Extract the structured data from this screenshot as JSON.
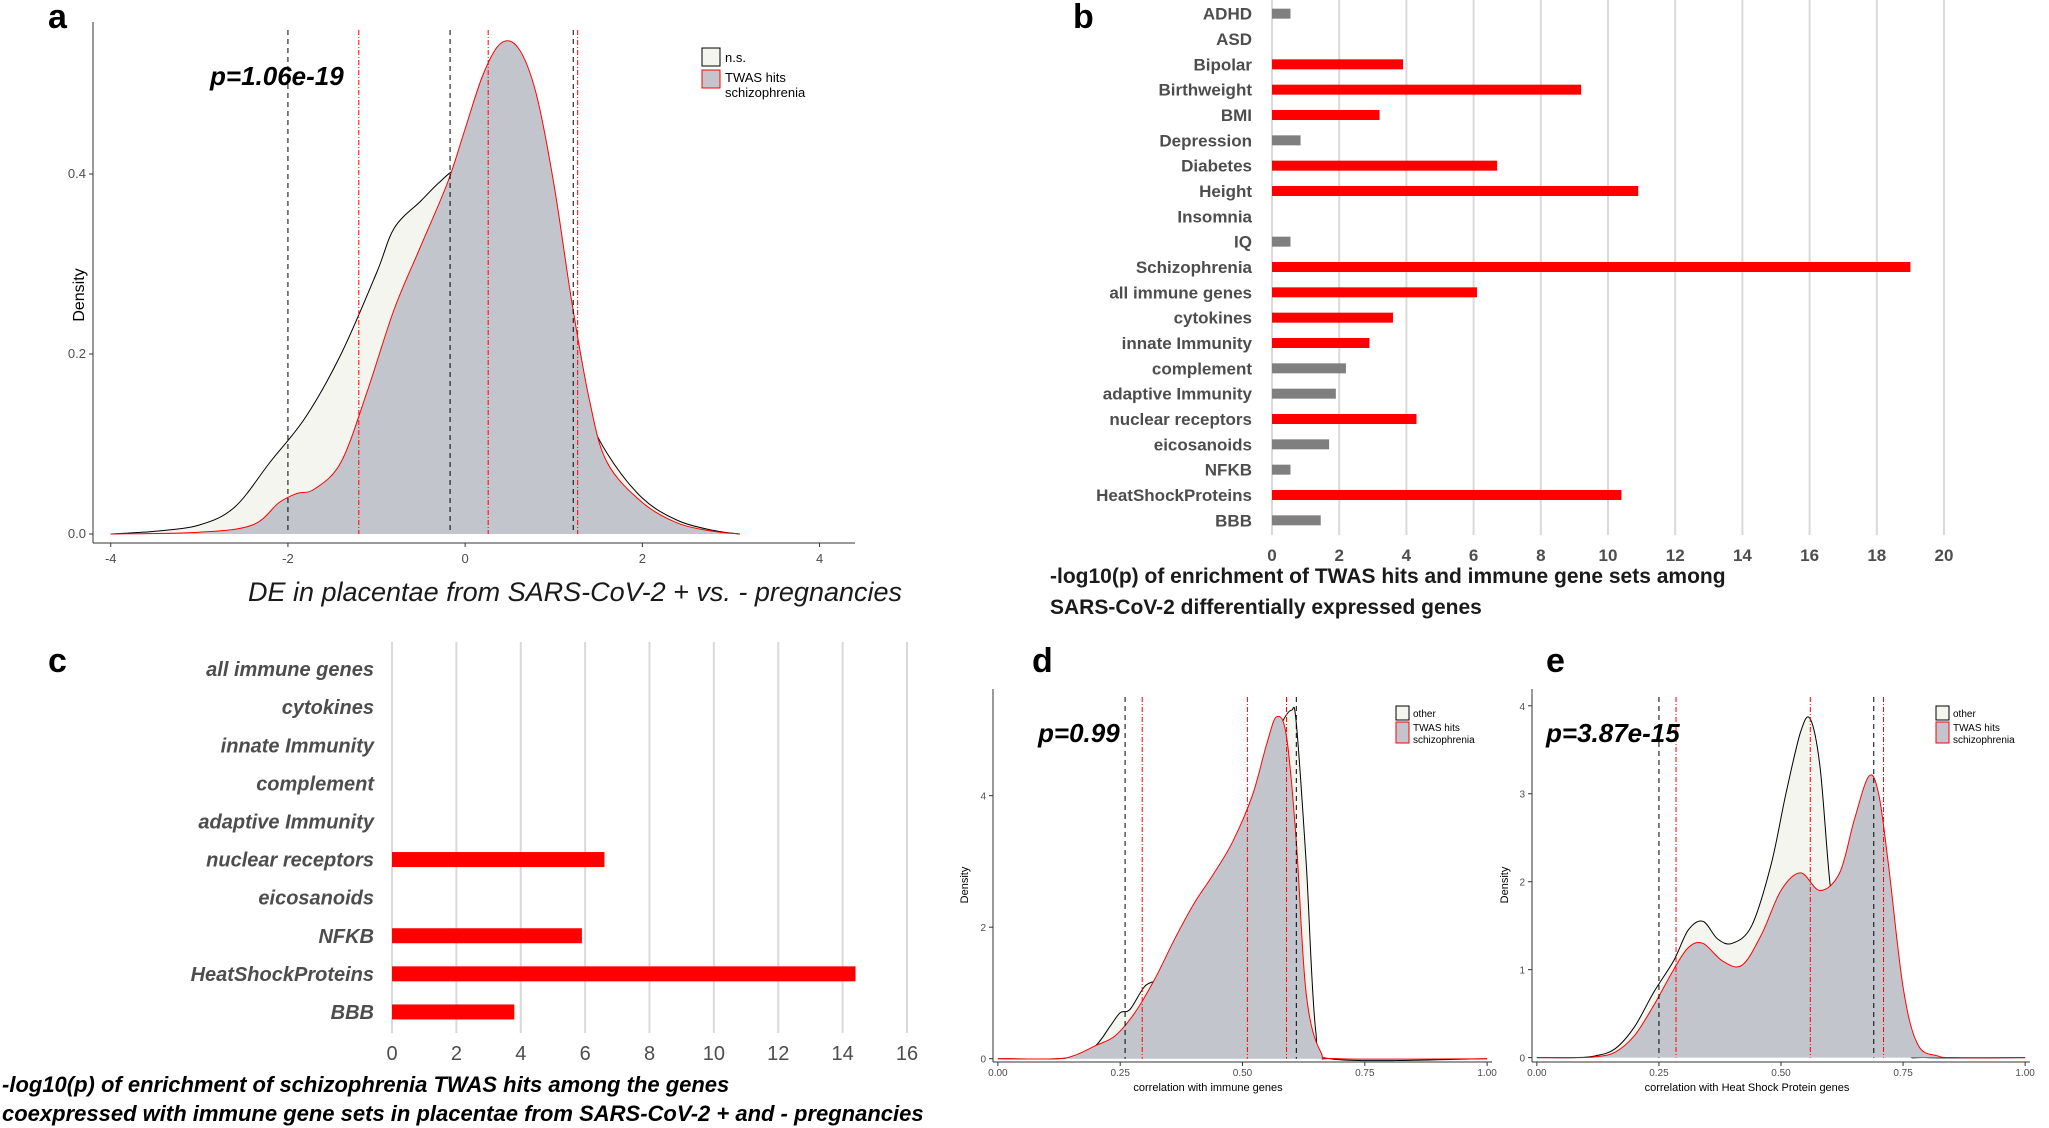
{
  "panels": {
    "a": {
      "letter": "a"
    },
    "b": {
      "letter": "b"
    },
    "c": {
      "letter": "c"
    },
    "d": {
      "letter": "d"
    },
    "e": {
      "letter": "e"
    }
  },
  "colors": {
    "ns_fill": "#f5f5ef",
    "twas_fill": "#c2c6cc",
    "red": "#ff0000",
    "grey_bar": "#7f7f7f",
    "grid": "#d9d9d9",
    "axis": "#333333"
  },
  "chart_data": [
    {
      "id": "a",
      "type": "area",
      "title": "",
      "annotation": "p=1.06e-19",
      "xlabel": "DE in placentae from SARS-CoV-2 + vs. - pregnancies",
      "ylabel": "Density",
      "xlim": [
        -4.2,
        4.4
      ],
      "ylim": [
        -0.01,
        0.56
      ],
      "xticks": [
        -4,
        -2,
        0,
        2,
        4
      ],
      "yticks": [
        0.0,
        0.2,
        0.4
      ],
      "ytick_labels": [
        "0.0",
        "0.2",
        "0.4"
      ],
      "legend": [
        "n.s.",
        "TWAS hits",
        "schizophrenia"
      ],
      "series": [
        {
          "name": "n.s.",
          "x": [
            -4.0,
            -3.5,
            -3.0,
            -2.6,
            -2.2,
            -1.8,
            -1.4,
            -1.0,
            -0.8,
            -0.5,
            -0.3,
            -0.1,
            0.1,
            0.4,
            0.7,
            1.0,
            1.3,
            1.6,
            2.0,
            2.4,
            2.8,
            3.1
          ],
          "y": [
            0.0,
            0.003,
            0.01,
            0.03,
            0.08,
            0.13,
            0.2,
            0.29,
            0.34,
            0.37,
            0.39,
            0.405,
            0.4,
            0.37,
            0.31,
            0.23,
            0.15,
            0.09,
            0.04,
            0.015,
            0.004,
            0.0
          ]
        },
        {
          "name": "TWAS hits",
          "x": [
            -4.0,
            -3.0,
            -2.4,
            -2.1,
            -1.9,
            -1.7,
            -1.4,
            -1.1,
            -0.8,
            -0.5,
            -0.2,
            0.0,
            0.2,
            0.4,
            0.6,
            0.8,
            1.0,
            1.2,
            1.4,
            1.6,
            2.0,
            2.4,
            2.8,
            3.1
          ],
          "y": [
            0.0,
            0.002,
            0.01,
            0.035,
            0.045,
            0.05,
            0.08,
            0.16,
            0.25,
            0.32,
            0.39,
            0.45,
            0.51,
            0.545,
            0.54,
            0.49,
            0.39,
            0.26,
            0.15,
            0.08,
            0.035,
            0.012,
            0.003,
            0.0
          ]
        }
      ],
      "vlines_black": [
        -2.0,
        -0.17,
        1.22
      ],
      "vlines_red": [
        -1.2,
        0.26,
        1.27
      ]
    },
    {
      "id": "b",
      "type": "bar",
      "orientation": "horizontal",
      "categories": [
        "ADHD",
        "ASD",
        "Bipolar",
        "Birthweight",
        "BMI",
        "Depression",
        "Diabetes",
        "Height",
        "Insomnia",
        "IQ",
        "Schizophrenia",
        "all immune genes",
        "cytokines",
        "innate Immunity",
        "complement",
        "adaptive Immunity",
        "nuclear receptors",
        "eicosanoids",
        "NFKB",
        "HeatShockProteins",
        "BBB"
      ],
      "values": [
        0.55,
        0,
        3.9,
        9.2,
        3.2,
        0.85,
        6.7,
        10.9,
        0,
        0.55,
        19,
        6.1,
        3.6,
        2.9,
        2.2,
        1.9,
        4.3,
        1.7,
        0.55,
        10.4,
        1.45
      ],
      "significant": [
        false,
        false,
        true,
        true,
        true,
        false,
        true,
        true,
        false,
        false,
        true,
        true,
        true,
        true,
        false,
        false,
        true,
        false,
        false,
        true,
        false
      ],
      "xlim": [
        0,
        20
      ],
      "xticks": [
        0,
        2,
        4,
        6,
        8,
        10,
        12,
        14,
        16,
        18,
        20
      ],
      "xlabel": [
        "-log10(p) of enrichment of TWAS hits and immune gene sets among",
        "SARS-CoV-2 differentially expressed genes"
      ]
    },
    {
      "id": "c",
      "type": "bar",
      "orientation": "horizontal",
      "categories": [
        "all immune genes",
        "cytokines",
        "innate Immunity",
        "complement",
        "adaptive Immunity",
        "nuclear receptors",
        "eicosanoids",
        "NFKB",
        "HeatShockProteins",
        "BBB"
      ],
      "values": [
        0,
        0,
        0,
        0,
        0,
        6.6,
        0,
        5.9,
        14.4,
        3.8
      ],
      "xlim": [
        0,
        16
      ],
      "xticks": [
        0,
        2,
        4,
        6,
        8,
        10,
        12,
        14,
        16
      ],
      "xlabel": [
        "-log10(p) of enrichment of schizophrenia TWAS hits among the genes",
        "coexpressed with immune gene sets in placentae from SARS-CoV-2 + and - pregnancies"
      ]
    },
    {
      "id": "d",
      "type": "area",
      "annotation": "p=0.99",
      "xlabel": "correlation with immune genes",
      "ylabel": "Density",
      "xlim": [
        -0.01,
        1.01
      ],
      "ylim": [
        -0.05,
        5.5
      ],
      "xticks": [
        0.0,
        0.25,
        0.5,
        0.75,
        1.0
      ],
      "xtick_labels": [
        "0.00",
        "0.25",
        "0.50",
        "0.75",
        "1.00"
      ],
      "yticks": [
        0,
        2,
        4
      ],
      "legend": [
        "other",
        "TWAS hits",
        "schizophrenia"
      ],
      "series": [
        {
          "name": "other",
          "x": [
            0.0,
            0.12,
            0.16,
            0.2,
            0.23,
            0.25,
            0.27,
            0.3,
            0.33,
            0.37,
            0.41,
            0.44,
            0.47,
            0.5,
            0.53,
            0.56,
            0.58,
            0.6,
            0.61,
            0.63,
            0.65,
            0.68,
            1.0
          ],
          "y": [
            0.0,
            0.0,
            0.05,
            0.2,
            0.5,
            0.7,
            0.75,
            1.1,
            1.25,
            1.8,
            2.4,
            2.7,
            2.85,
            3.4,
            4.0,
            4.7,
            5.1,
            5.3,
            5.1,
            3.0,
            0.4,
            0.0,
            0.0
          ]
        },
        {
          "name": "TWAS hits",
          "x": [
            0.0,
            0.12,
            0.16,
            0.2,
            0.24,
            0.28,
            0.32,
            0.36,
            0.4,
            0.44,
            0.48,
            0.52,
            0.55,
            0.57,
            0.59,
            0.61,
            0.63,
            0.66,
            0.7,
            1.0
          ],
          "y": [
            0.0,
            0.0,
            0.06,
            0.2,
            0.35,
            0.7,
            1.2,
            1.8,
            2.35,
            2.8,
            3.3,
            4.0,
            4.8,
            5.2,
            4.9,
            3.3,
            1.0,
            0.1,
            0.0,
            0.0
          ]
        }
      ],
      "vlines_black": [
        0.26,
        0.61
      ],
      "vlines_red": [
        0.295,
        0.51,
        0.59
      ]
    },
    {
      "id": "e",
      "type": "area",
      "annotation": "p=3.87e-15",
      "xlabel": "correlation with Heat Shock Protein genes",
      "ylabel": "Density",
      "xlim": [
        -0.01,
        1.01
      ],
      "ylim": [
        -0.05,
        4.1
      ],
      "xticks": [
        0.0,
        0.25,
        0.5,
        0.75,
        1.0
      ],
      "xtick_labels": [
        "0.00",
        "0.25",
        "0.50",
        "0.75",
        "1.00"
      ],
      "yticks": [
        0,
        1,
        2,
        3,
        4
      ],
      "legend": [
        "other",
        "TWAS hits",
        "schizophrenia"
      ],
      "series": [
        {
          "name": "other",
          "x": [
            0.0,
            0.08,
            0.12,
            0.16,
            0.2,
            0.24,
            0.28,
            0.31,
            0.34,
            0.37,
            0.4,
            0.44,
            0.48,
            0.51,
            0.54,
            0.56,
            0.58,
            0.6,
            0.62,
            0.65,
            0.67,
            0.69,
            0.71,
            0.73,
            0.76,
            0.8,
            1.0
          ],
          "y": [
            0.0,
            0.0,
            0.02,
            0.1,
            0.35,
            0.75,
            1.1,
            1.45,
            1.55,
            1.35,
            1.3,
            1.5,
            2.2,
            3.0,
            3.7,
            3.85,
            3.3,
            2.0,
            1.2,
            0.95,
            1.1,
            1.2,
            1.0,
            0.5,
            0.05,
            0.0,
            0.0
          ]
        },
        {
          "name": "TWAS hits",
          "x": [
            0.0,
            0.08,
            0.12,
            0.16,
            0.2,
            0.24,
            0.28,
            0.31,
            0.34,
            0.38,
            0.42,
            0.46,
            0.5,
            0.54,
            0.58,
            0.62,
            0.65,
            0.68,
            0.7,
            0.72,
            0.75,
            0.78,
            0.82,
            0.86,
            1.0
          ],
          "y": [
            0.0,
            0.0,
            0.01,
            0.06,
            0.25,
            0.6,
            1.0,
            1.25,
            1.3,
            1.1,
            1.05,
            1.4,
            1.9,
            2.1,
            1.9,
            2.1,
            2.7,
            3.2,
            3.0,
            2.2,
            0.8,
            0.15,
            0.02,
            0.0,
            0.0
          ]
        }
      ],
      "vlines_black": [
        0.25,
        0.69
      ],
      "vlines_red": [
        0.285,
        0.56,
        0.71
      ]
    }
  ]
}
